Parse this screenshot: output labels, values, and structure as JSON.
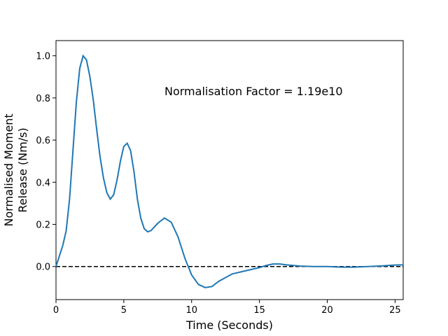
{
  "chart_data": {
    "type": "line",
    "xlabel": "Time (Seconds)",
    "ylabel": [
      "Normalised Moment",
      "Release (Nm/s)"
    ],
    "annotation": "Normalisation Factor = 1.19e10",
    "x": [
      0,
      0.25,
      0.5,
      0.75,
      1.0,
      1.25,
      1.5,
      1.75,
      2.0,
      2.25,
      2.5,
      2.75,
      3.0,
      3.25,
      3.5,
      3.75,
      4.0,
      4.25,
      4.5,
      4.75,
      5.0,
      5.25,
      5.5,
      5.75,
      6.0,
      6.25,
      6.5,
      6.75,
      7.0,
      7.5,
      8.0,
      8.5,
      9.0,
      9.5,
      10,
      10.5,
      11,
      11.5,
      12,
      13,
      14,
      15,
      15.5,
      16,
      16.5,
      17,
      18,
      19,
      20,
      21,
      22,
      23,
      24,
      25,
      25.6
    ],
    "series": [
      {
        "name": "moment release",
        "color": "#1f77b4",
        "values": [
          0,
          0.05,
          0.1,
          0.17,
          0.32,
          0.55,
          0.78,
          0.94,
          1.0,
          0.98,
          0.9,
          0.79,
          0.65,
          0.52,
          0.42,
          0.35,
          0.32,
          0.34,
          0.41,
          0.5,
          0.57,
          0.585,
          0.55,
          0.45,
          0.32,
          0.23,
          0.18,
          0.165,
          0.17,
          0.205,
          0.23,
          0.21,
          0.14,
          0.04,
          -0.04,
          -0.085,
          -0.1,
          -0.095,
          -0.07,
          -0.035,
          -0.02,
          -0.005,
          0.005,
          0.012,
          0.012,
          0.008,
          0.002,
          0,
          0,
          -0.003,
          -0.003,
          0,
          0.003,
          0.007,
          0.008
        ]
      }
    ],
    "hline": 0,
    "xlim": [
      0,
      25.6
    ],
    "ylim": [
      -0.157,
      1.072
    ],
    "xticks": [
      0,
      5,
      10,
      15,
      20,
      25
    ],
    "yticks": [
      {
        "value": 0,
        "label": "0.0"
      },
      0.2,
      0.4,
      0.6,
      0.8,
      {
        "value": 1,
        "label": "1.0"
      }
    ],
    "grid": false
  }
}
